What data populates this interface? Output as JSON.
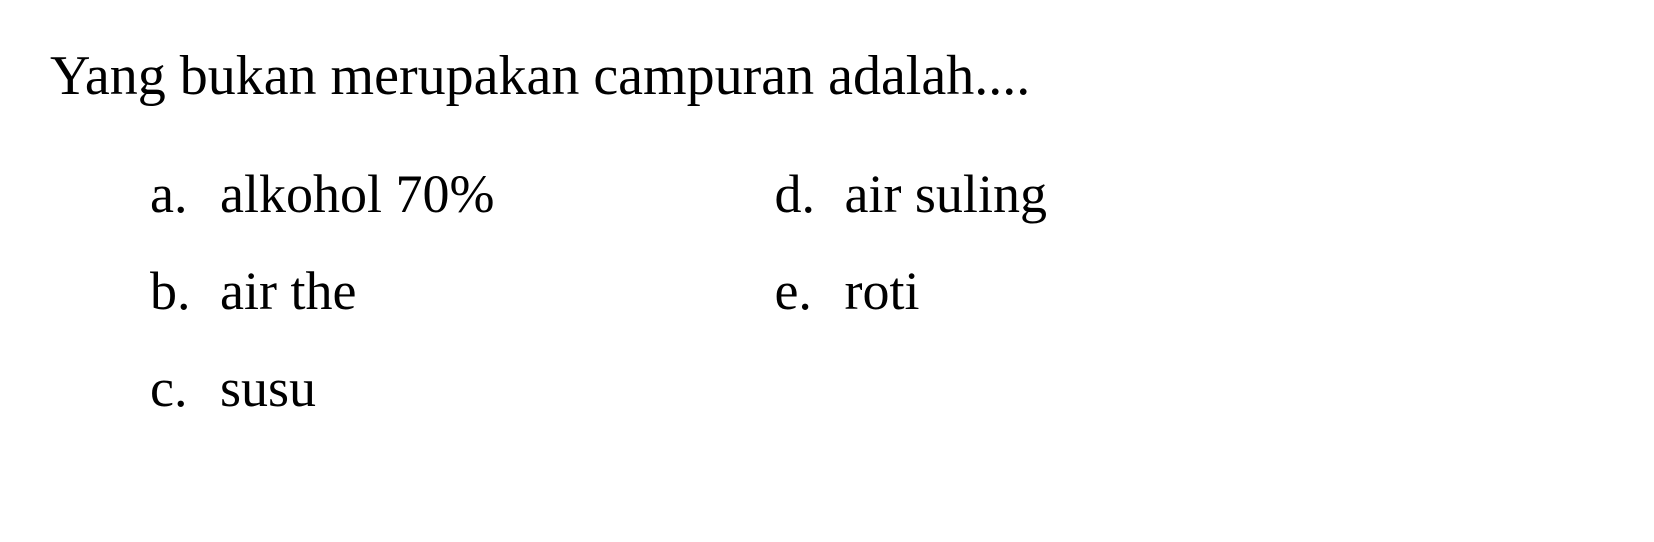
{
  "question": {
    "text": "Yang bukan merupakan campuran adalah....",
    "font_size": 56,
    "color": "#000000"
  },
  "options": {
    "left_column": [
      {
        "letter": "a.",
        "text": "alkohol 70%"
      },
      {
        "letter": "b.",
        "text": "air the"
      },
      {
        "letter": "c.",
        "text": "susu"
      }
    ],
    "right_column": [
      {
        "letter": "d.",
        "text": "air suling"
      },
      {
        "letter": "e.",
        "text": "roti"
      }
    ],
    "font_size": 54,
    "color": "#000000"
  },
  "background_color": "#ffffff"
}
